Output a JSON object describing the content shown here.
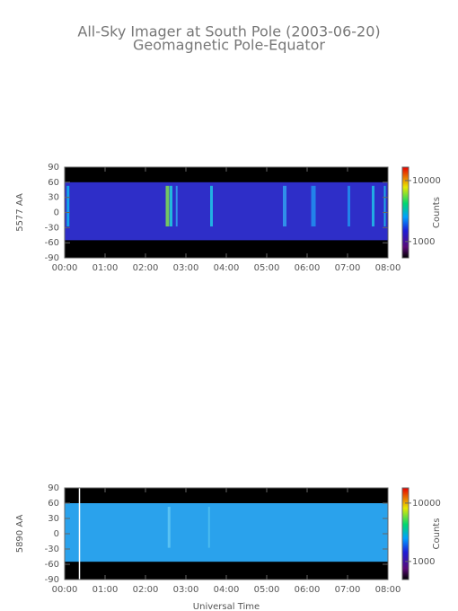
{
  "title": "All-Sky Imager at South Pole (2003-06-20)",
  "subtitle": "Geomagnetic Pole-Equator",
  "chart_data": [
    {
      "type": "heatmap",
      "ylabel": "5577 AA",
      "xlim": [
        0,
        8
      ],
      "xticks": [
        {
          "value": 0,
          "label": "00:00"
        },
        {
          "value": 1,
          "label": "01:00"
        },
        {
          "value": 2,
          "label": "02:00"
        },
        {
          "value": 3,
          "label": "03:00"
        },
        {
          "value": 4,
          "label": "04:00"
        },
        {
          "value": 5,
          "label": "05:00"
        },
        {
          "value": 6,
          "label": "06:00"
        },
        {
          "value": 7,
          "label": "07:00"
        },
        {
          "value": 8,
          "label": "08:00"
        }
      ],
      "ylim": [
        -90,
        90
      ],
      "yticks": [
        -90,
        -60,
        -30,
        0,
        30,
        60,
        90
      ],
      "colorbar": {
        "label": "Counts",
        "log": true,
        "lim": [
          540,
          16600
        ],
        "ticks": [
          1000,
          10000
        ]
      }
    },
    {
      "type": "heatmap",
      "ylabel": "5890 AA",
      "xlabel": "Universal Time",
      "xlim": [
        0,
        8
      ],
      "xticks": [
        {
          "value": 0,
          "label": "00:00"
        },
        {
          "value": 1,
          "label": "01:00"
        },
        {
          "value": 2,
          "label": "02:00"
        },
        {
          "value": 3,
          "label": "03:00"
        },
        {
          "value": 4,
          "label": "04:00"
        },
        {
          "value": 5,
          "label": "05:00"
        },
        {
          "value": 6,
          "label": "06:00"
        },
        {
          "value": 7,
          "label": "07:00"
        },
        {
          "value": 8,
          "label": "08:00"
        }
      ],
      "ylim": [
        -90,
        90
      ],
      "yticks": [
        -90,
        -60,
        -30,
        0,
        30,
        60,
        90
      ],
      "colorbar": {
        "label": "Counts",
        "log": true,
        "lim": [
          490,
          18200
        ],
        "ticks": [
          1000,
          10000
        ]
      }
    }
  ]
}
